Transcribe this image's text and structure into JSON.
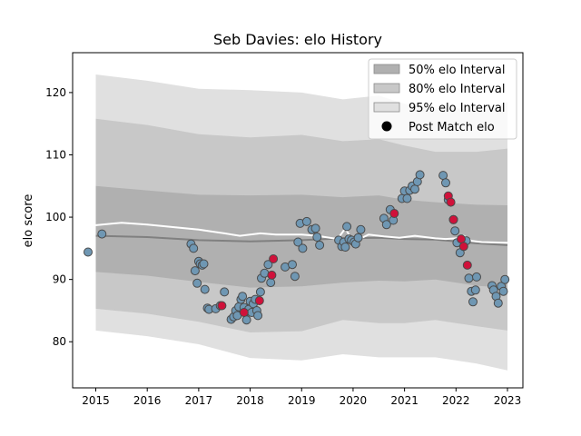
{
  "chart_data": {
    "type": "scatter",
    "title": "Seb Davies: elo History",
    "xlabel": "",
    "ylabel": "elo score",
    "xlim": [
      2014.55,
      2023.3
    ],
    "ylim": [
      72.6,
      126.4
    ],
    "xticks": [
      "2015",
      "2016",
      "2017",
      "2018",
      "2019",
      "2020",
      "2021",
      "2022",
      "2023"
    ],
    "yticks": [
      "80",
      "90",
      "100",
      "110",
      "120"
    ],
    "legend_position": "top-right",
    "legend": [
      {
        "label": "50% elo Interval",
        "kind": "patch",
        "color": "#b0b0b0"
      },
      {
        "label": "80% elo Interval",
        "kind": "patch",
        "color": "#c8c8c8"
      },
      {
        "label": "95% elo Interval",
        "kind": "patch",
        "color": "#e0e0e0"
      },
      {
        "label": "Post Match elo",
        "kind": "marker",
        "color": "#000000"
      }
    ],
    "bands": {
      "x": [
        2015.0,
        2016.0,
        2017.0,
        2018.0,
        2019.0,
        2019.8,
        2020.5,
        2021.0,
        2021.6,
        2022.0,
        2022.4,
        2023.0
      ],
      "band95_low": [
        81.8,
        80.9,
        79.6,
        77.4,
        77.0,
        78.0,
        77.5,
        77.5,
        77.5,
        77.0,
        76.5,
        75.4
      ],
      "band95_high": [
        122.9,
        121.9,
        120.6,
        120.4,
        120.0,
        118.9,
        119.5,
        118.2,
        117.3,
        117.5,
        117.0,
        118.5
      ],
      "band80_low": [
        85.3,
        84.5,
        83.2,
        81.5,
        81.7,
        83.5,
        83.0,
        83.0,
        83.5,
        83.0,
        82.5,
        81.8
      ],
      "band80_high": [
        115.8,
        114.8,
        113.3,
        112.8,
        113.2,
        112.2,
        112.5,
        111.5,
        110.5,
        110.5,
        110.5,
        111.0
      ],
      "band50_low": [
        91.2,
        90.6,
        89.6,
        88.7,
        88.9,
        89.5,
        89.8,
        89.7,
        90.0,
        89.5,
        89.0,
        88.6
      ],
      "band50_high": [
        105.0,
        104.3,
        103.6,
        103.5,
        103.6,
        103.2,
        103.5,
        102.8,
        102.4,
        102.2,
        102.0,
        101.9
      ],
      "mean": [
        97.0,
        96.8,
        96.3,
        96.1,
        96.3,
        96.6,
        96.7,
        96.5,
        96.4,
        96.1,
        95.8,
        95.5
      ]
    },
    "upper_line": {
      "x": [
        2014.85,
        2015.5,
        2016.0,
        2016.5,
        2017.0,
        2017.5,
        2017.8,
        2018.2,
        2018.5,
        2019.0,
        2019.3,
        2019.7,
        2019.85,
        2020.0,
        2020.3,
        2020.6,
        2020.9,
        2021.2,
        2021.6,
        2021.8,
        2022.0,
        2022.15,
        2022.3,
        2022.5,
        2023.0
      ],
      "y": [
        98.6,
        99.1,
        98.8,
        98.4,
        98.0,
        97.4,
        97.0,
        97.4,
        97.2,
        97.2,
        97.0,
        96.5,
        98.2,
        96.0,
        97.2,
        96.9,
        96.7,
        97.0,
        96.6,
        96.5,
        96.6,
        97.0,
        96.2,
        96.0,
        95.9
      ]
    },
    "series": [
      {
        "name": "Post Match elo",
        "color": "#6f97b3",
        "x": [
          2014.85,
          2015.12,
          2016.85,
          2016.9,
          2016.93,
          2016.97,
          2017.0,
          2017.03,
          2017.07,
          2017.1,
          2017.12,
          2017.17,
          2017.2,
          2017.33,
          2017.42,
          2017.5,
          2017.63,
          2017.68,
          2017.72,
          2017.75,
          2017.78,
          2017.82,
          2017.85,
          2017.88,
          2017.9,
          2017.93,
          2017.97,
          2018.0,
          2018.03,
          2018.06,
          2018.1,
          2018.13,
          2018.15,
          2018.2,
          2018.22,
          2018.28,
          2018.35,
          2018.4,
          2018.68,
          2018.82,
          2018.87,
          2018.93,
          2018.97,
          2019.02,
          2019.1,
          2019.2,
          2019.27,
          2019.3,
          2019.35,
          2019.72,
          2019.78,
          2019.82,
          2019.85,
          2019.88,
          2019.92,
          2019.97,
          2020.02,
          2020.05,
          2020.1,
          2020.15,
          2020.6,
          2020.65,
          2020.72,
          2020.78,
          2020.95,
          2021.0,
          2021.05,
          2021.1,
          2021.15,
          2021.2,
          2021.25,
          2021.3,
          2021.75,
          2021.8,
          2021.85,
          2021.95,
          2021.98,
          2022.02,
          2022.08,
          2022.2,
          2022.25,
          2022.3,
          2022.33,
          2022.38,
          2022.4,
          2022.7,
          2022.73,
          2022.78,
          2022.82,
          2022.88,
          2022.92,
          2022.95
        ],
        "y": [
          94.4,
          97.3,
          95.7,
          95.0,
          91.4,
          89.4,
          92.9,
          92.5,
          92.3,
          92.5,
          88.4,
          85.4,
          85.2,
          85.3,
          85.8,
          88.0,
          83.6,
          84.0,
          85.0,
          84.2,
          85.6,
          86.8,
          87.3,
          85.5,
          84.7,
          83.5,
          85.2,
          86.5,
          84.7,
          86.1,
          86.8,
          85.0,
          84.2,
          88.0,
          90.2,
          91.0,
          92.4,
          89.5,
          92.0,
          92.4,
          90.5,
          96.0,
          99.0,
          95.0,
          99.3,
          98.0,
          98.2,
          96.8,
          95.5,
          96.3,
          95.3,
          96.0,
          95.2,
          98.5,
          96.5,
          96.3,
          96.0,
          95.7,
          96.7,
          98.0,
          99.8,
          98.8,
          101.2,
          99.5,
          103.0,
          104.2,
          103.0,
          104.3,
          105.0,
          104.5,
          105.7,
          106.8,
          106.7,
          105.5,
          102.8,
          99.6,
          97.8,
          95.9,
          94.3,
          96.2,
          90.2,
          88.1,
          86.4,
          88.3,
          90.4,
          89.0,
          88.3,
          87.3,
          86.2,
          88.9,
          88.1,
          90.0
        ]
      },
      {
        "name": "",
        "color": "#d0113a",
        "x": [
          2017.45,
          2017.88,
          2018.18,
          2018.42,
          2018.45,
          2020.8,
          2021.85,
          2021.9,
          2021.95,
          2022.1,
          2022.15,
          2022.22
        ],
        "y": [
          85.8,
          84.7,
          86.6,
          90.7,
          93.3,
          100.6,
          103.4,
          102.4,
          99.6,
          96.5,
          95.3,
          92.3
        ]
      }
    ]
  }
}
